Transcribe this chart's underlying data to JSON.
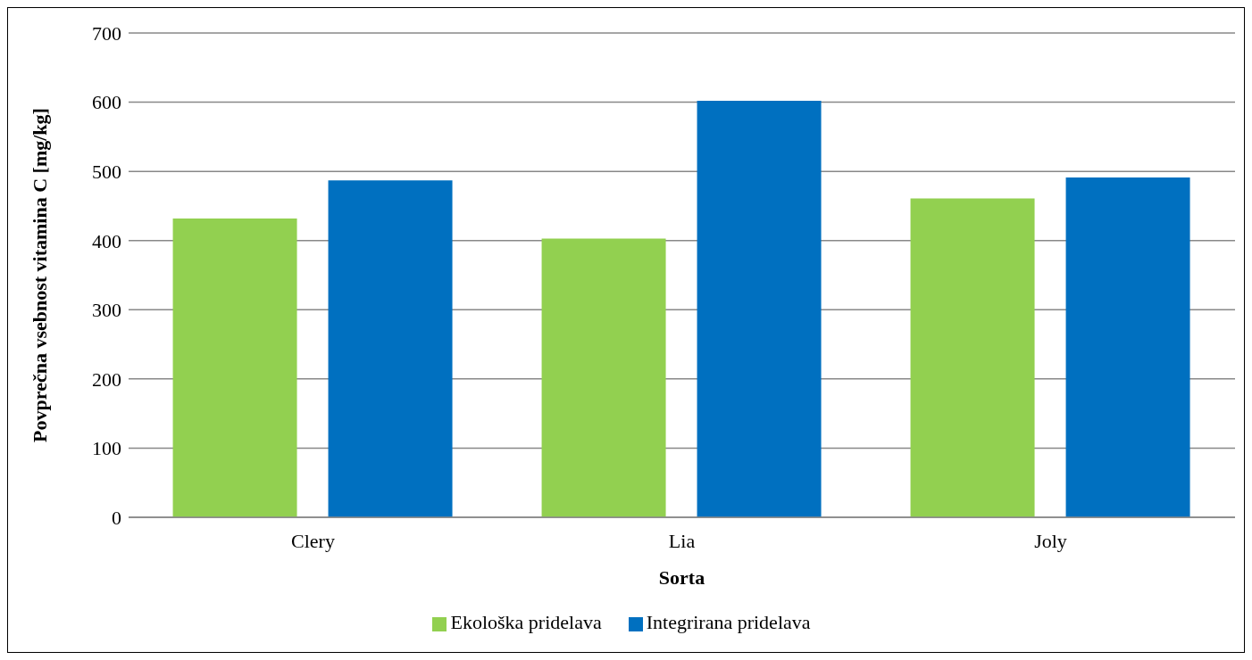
{
  "chart_data": {
    "type": "bar",
    "xlabel": "Sorta",
    "ylabel": "Povprečna vsebnost vitamina C [mg/kg]",
    "categories": [
      "Clery",
      "Lia",
      "Joly"
    ],
    "series": [
      {
        "name": "Ekološka pridelava",
        "color": "#92d050",
        "values": [
          432,
          403,
          461
        ]
      },
      {
        "name": "Integrirana pridelava",
        "color": "#0070c0",
        "values": [
          487,
          602,
          491
        ]
      }
    ],
    "ylim": [
      0,
      700
    ],
    "yticks": [
      0,
      100,
      200,
      300,
      400,
      500,
      600,
      700
    ],
    "grid": "y",
    "legend": "bottom"
  }
}
